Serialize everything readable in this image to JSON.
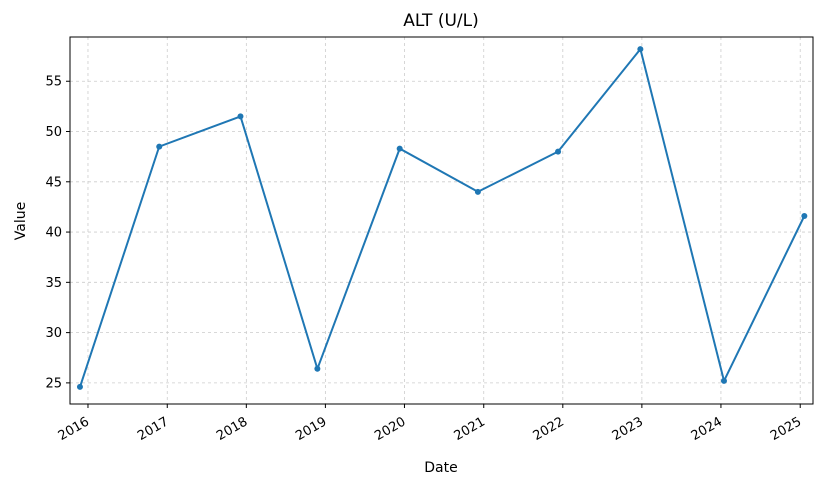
{
  "chart_data": {
    "type": "line",
    "title": "ALT (U/L)",
    "xlabel": "Date",
    "ylabel": "Value",
    "x": [
      "2015-11-25",
      "2016-11-25",
      "2017-12-05",
      "2018-11-25",
      "2019-12-10",
      "2020-12-05",
      "2021-12-10",
      "2022-12-25",
      "2024-01-15",
      "2025-01-20"
    ],
    "series": [
      {
        "values": [
          24.6,
          48.5,
          51.5,
          26.4,
          48.3,
          44.0,
          48.0,
          58.2,
          25.2,
          41.6
        ],
        "color": "#1f77b4"
      }
    ],
    "xticks": [
      "2016",
      "2017",
      "2018",
      "2019",
      "2020",
      "2021",
      "2022",
      "2023",
      "2024",
      "2025"
    ],
    "yticks": [
      25,
      30,
      35,
      40,
      45,
      50,
      55
    ],
    "ylim": [
      22.9,
      59.4
    ],
    "xlim": [
      "2015-10-10",
      "2025-03-01"
    ],
    "grid": true
  }
}
